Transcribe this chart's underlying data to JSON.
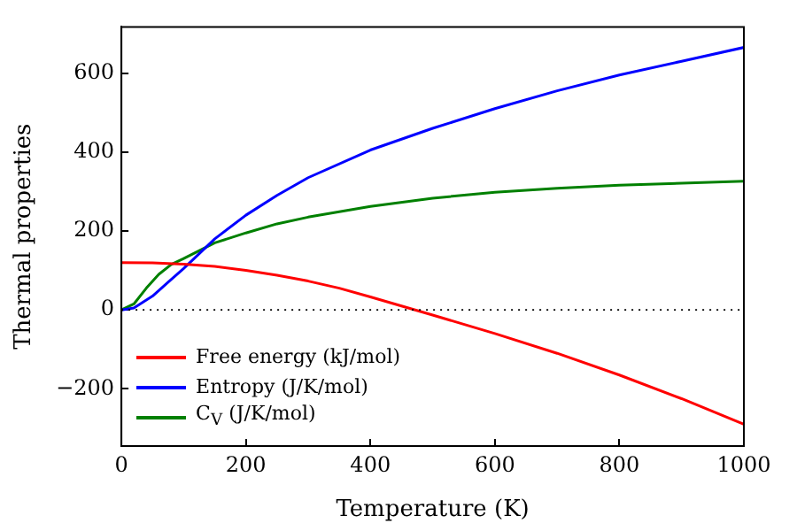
{
  "chart_data": {
    "type": "line",
    "xlabel": "Temperature (K)",
    "ylabel": "Thermal properties",
    "xlim": [
      0,
      1000
    ],
    "xticks": [
      0,
      200,
      400,
      600,
      800,
      1000
    ],
    "ylim": [
      -345,
      717
    ],
    "yticks": [
      -200,
      0,
      200,
      400,
      600
    ],
    "grid": false,
    "legend": "bottom left",
    "marker": "none",
    "line_style": "solid",
    "ref_lines": [
      {
        "axis": "y",
        "value": 0,
        "color": "#000000",
        "line_style": "dotted"
      }
    ],
    "series": [
      {
        "name": "Free energy (kJ/mol)",
        "color": "#ff0000",
        "x": [
          0,
          50,
          100,
          150,
          200,
          250,
          300,
          350,
          400,
          450,
          500,
          600,
          700,
          800,
          900,
          1000
        ],
        "values": [
          120,
          119,
          116,
          110,
          100,
          88,
          73,
          55,
          33,
          10,
          -13,
          -60,
          -110,
          -165,
          -225,
          -290
        ]
      },
      {
        "name": "Entropy (J/K/mol)",
        "color": "#0000ff",
        "x": [
          0,
          20,
          50,
          75,
          100,
          150,
          200,
          250,
          300,
          400,
          500,
          600,
          700,
          800,
          900,
          1000
        ],
        "values": [
          0,
          5,
          35,
          70,
          105,
          180,
          240,
          290,
          335,
          405,
          460,
          510,
          555,
          595,
          630,
          665
        ]
      },
      {
        "name": "C$_{V}$ (J/K/mol)",
        "color": "#008000",
        "x": [
          0,
          20,
          40,
          60,
          80,
          100,
          150,
          200,
          250,
          300,
          400,
          500,
          600,
          700,
          800,
          900,
          1000
        ],
        "values": [
          0,
          15,
          55,
          90,
          115,
          130,
          170,
          195,
          218,
          235,
          262,
          283,
          298,
          308,
          316,
          321,
          326
        ]
      }
    ]
  }
}
